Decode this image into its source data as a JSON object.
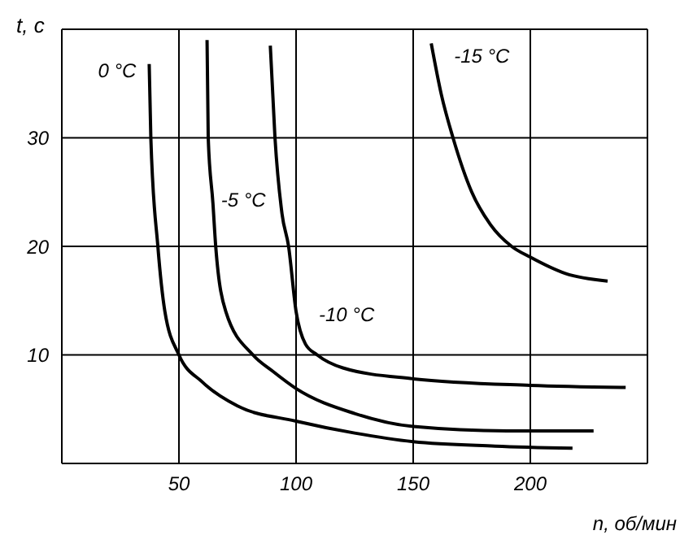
{
  "chart_data": {
    "type": "line",
    "xlabel": "n, об/мин",
    "ylabel": "t, c",
    "xlim": [
      0,
      250
    ],
    "ylim": [
      0,
      40
    ],
    "xticks": [
      50,
      100,
      150,
      200
    ],
    "yticks": [
      10,
      20,
      30
    ],
    "grid": true,
    "marker": "none",
    "line_style": "solid",
    "legend": false,
    "series": [
      {
        "name": "0 °C",
        "color": "#000000",
        "x": [
          37.3,
          38,
          41,
          44,
          50,
          60,
          75,
          100,
          125,
          150,
          185,
          218
        ],
        "values": [
          36.8,
          30,
          20,
          14,
          10,
          7.5,
          5.3,
          3.9,
          2.8,
          2.0,
          1.6,
          1.4
        ]
      },
      {
        "name": "-5 °C",
        "color": "#000000",
        "x": [
          62,
          62.5,
          64.5,
          65.7,
          70,
          81.6,
          90,
          100,
          125,
          150,
          190,
          227
        ],
        "values": [
          39,
          30,
          24,
          20,
          14,
          10,
          8.5,
          6.9,
          4.6,
          3.4,
          3.0,
          3.0
        ]
      },
      {
        "name": "-10 °C",
        "color": "#000000",
        "x": [
          89,
          91,
          94,
          96.8,
          100,
          104,
          109,
          120,
          150,
          200,
          240.7
        ],
        "values": [
          38.5,
          30,
          23,
          20,
          14,
          11,
          10,
          8.8,
          7.8,
          7.2,
          7.0
        ]
      },
      {
        "name": "-15 °C",
        "color": "#000000",
        "x": [
          157.7,
          162,
          167,
          175,
          183,
          192,
          200,
          215,
          233
        ],
        "values": [
          38.7,
          34,
          30,
          25,
          22,
          20,
          19,
          17.5,
          16.8
        ]
      }
    ]
  }
}
